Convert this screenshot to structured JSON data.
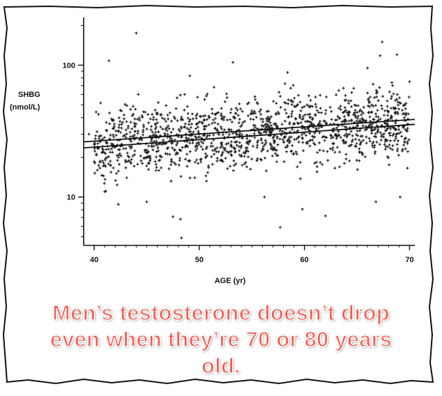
{
  "caption": {
    "line1": "Men’s testosterone doesn’t drop",
    "line2": "even when they’re 70 or 80 years",
    "line3": "old."
  },
  "colors": {
    "caption": "#f25a4d",
    "points": "#1a1a1a",
    "axis": "#111111",
    "background": "#ffffff"
  },
  "chart_data": {
    "type": "scatter",
    "title": "",
    "xlabel": "AGE (yr)",
    "ylabel_line1": "SHBG",
    "ylabel_line2": "(nmol/L)",
    "xlim": [
      39,
      70.5
    ],
    "ylim": [
      4.3,
      230
    ],
    "y_scale": "log",
    "x_ticks": [
      40,
      50,
      60,
      70
    ],
    "x_tick_labels": [
      "40",
      "50",
      "60",
      "70"
    ],
    "y_ticks": [
      10,
      100
    ],
    "y_tick_labels": [
      "10",
      "100"
    ],
    "grid": false,
    "legend": "none",
    "series": [
      {
        "points": [
          [
            39.5,
            30
          ],
          [
            40.3,
            16
          ],
          [
            40.8,
            22
          ],
          [
            41.0,
            11
          ],
          [
            41.4,
            108
          ],
          [
            42.3,
            8.8
          ],
          [
            42.6,
            45
          ],
          [
            43.1,
            14
          ],
          [
            43.5,
            18
          ],
          [
            44.0,
            175
          ],
          [
            44.2,
            60
          ],
          [
            45.0,
            9.2
          ],
          [
            46.1,
            52
          ],
          [
            47.0,
            30
          ],
          [
            47.5,
            7.1
          ],
          [
            48.2,
            6.8
          ],
          [
            48.3,
            4.9
          ],
          [
            48.6,
            60
          ],
          [
            49.1,
            83
          ],
          [
            49.7,
            28
          ],
          [
            50.6,
            20
          ],
          [
            51.4,
            68
          ],
          [
            52.0,
            19
          ],
          [
            53.2,
            105
          ],
          [
            54.1,
            28
          ],
          [
            55.0,
            45
          ],
          [
            56.2,
            10
          ],
          [
            57.0,
            33
          ],
          [
            57.7,
            5.9
          ],
          [
            58.4,
            88
          ],
          [
            59.2,
            22
          ],
          [
            59.8,
            8.1
          ],
          [
            60.6,
            49
          ],
          [
            61.2,
            17
          ],
          [
            62.0,
            7.2
          ],
          [
            63.0,
            30
          ],
          [
            63.8,
            18
          ],
          [
            64.5,
            62
          ],
          [
            65.3,
            25
          ],
          [
            66.0,
            95
          ],
          [
            66.8,
            9.2
          ],
          [
            67.2,
            118
          ],
          [
            67.4,
            150
          ],
          [
            68.3,
            58
          ],
          [
            68.8,
            120
          ],
          [
            69.1,
            10
          ],
          [
            69.5,
            40
          ],
          [
            70.0,
            75
          ]
        ]
      }
    ],
    "regression_lines": [
      {
        "x": [
          39,
          70.5
        ],
        "y": [
          26.2,
          38.8
        ]
      },
      {
        "x": [
          39,
          70.5
        ],
        "y": [
          23.6,
          35.6
        ]
      }
    ]
  }
}
